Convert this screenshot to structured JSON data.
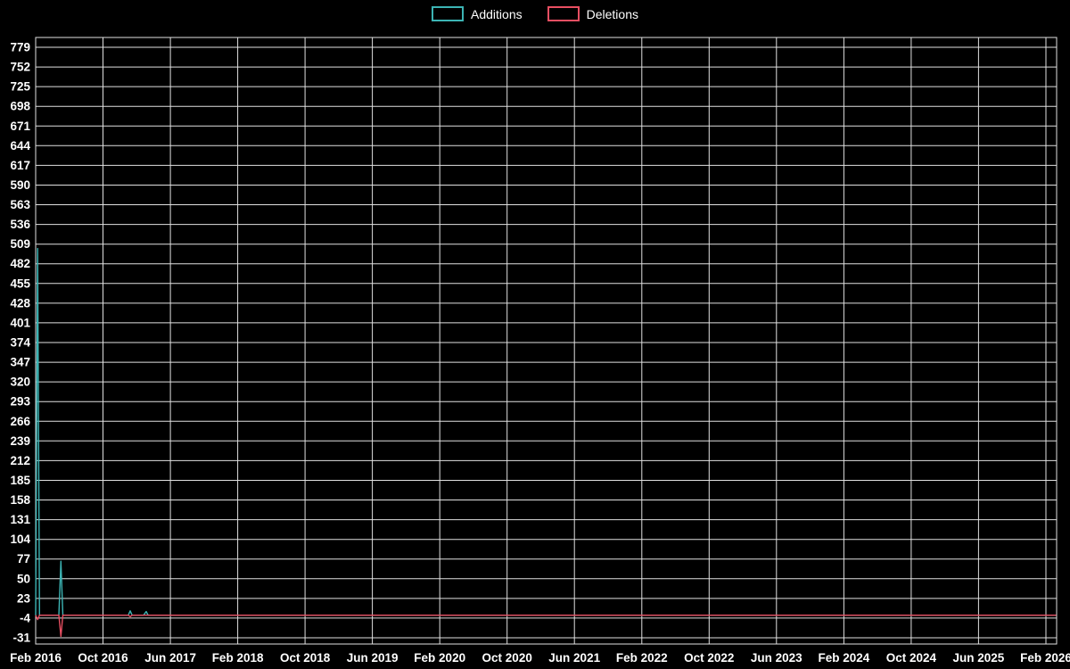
{
  "chart_data": {
    "type": "line",
    "title": "",
    "background": "#000000",
    "text_color": "#ffffff",
    "grid_color": "#e0e0e0",
    "grid": true,
    "legend_position": "top-center",
    "x_tick_labels": [
      "Feb 2016",
      "Oct 2016",
      "Jun 2017",
      "Feb 2018",
      "Oct 2018",
      "Jun 2019",
      "Feb 2020",
      "Oct 2020",
      "Jun 2021",
      "Feb 2022",
      "Oct 2022",
      "Jun 2023",
      "Feb 2024",
      "Oct 2024",
      "Jun 2025",
      "Feb 2026"
    ],
    "y_ticks": [
      779,
      752,
      725,
      698,
      671,
      644,
      617,
      590,
      563,
      536,
      509,
      482,
      455,
      428,
      401,
      374,
      347,
      320,
      293,
      266,
      239,
      212,
      185,
      158,
      131,
      104,
      77,
      50,
      23,
      -4,
      -31
    ],
    "ylim": [
      -40,
      793
    ],
    "x_range": [
      "2016-02-01",
      "2026-03-08"
    ],
    "series": [
      {
        "name": "Additions",
        "color": "#3cb4b4",
        "points": [
          [
            "2016-02-01",
            0
          ],
          [
            "2016-02-08",
            503
          ],
          [
            "2016-02-15",
            0
          ],
          [
            "2016-04-24",
            0
          ],
          [
            "2016-05-01",
            74
          ],
          [
            "2016-05-08",
            0
          ],
          [
            "2017-01-01",
            0
          ],
          [
            "2017-01-08",
            6
          ],
          [
            "2017-01-15",
            0
          ],
          [
            "2017-02-26",
            0
          ],
          [
            "2017-03-05",
            5
          ],
          [
            "2017-03-12",
            0
          ],
          [
            "2026-03-08",
            0
          ]
        ]
      },
      {
        "name": "Deletions",
        "color": "#e94f62",
        "points": [
          [
            "2016-02-01",
            0
          ],
          [
            "2016-02-08",
            -6
          ],
          [
            "2016-02-15",
            0
          ],
          [
            "2016-04-24",
            0
          ],
          [
            "2016-05-01",
            -29
          ],
          [
            "2016-05-08",
            0
          ],
          [
            "2017-01-01",
            0
          ],
          [
            "2017-01-08",
            -2
          ],
          [
            "2017-01-15",
            0
          ],
          [
            "2026-03-08",
            0
          ]
        ]
      }
    ]
  }
}
